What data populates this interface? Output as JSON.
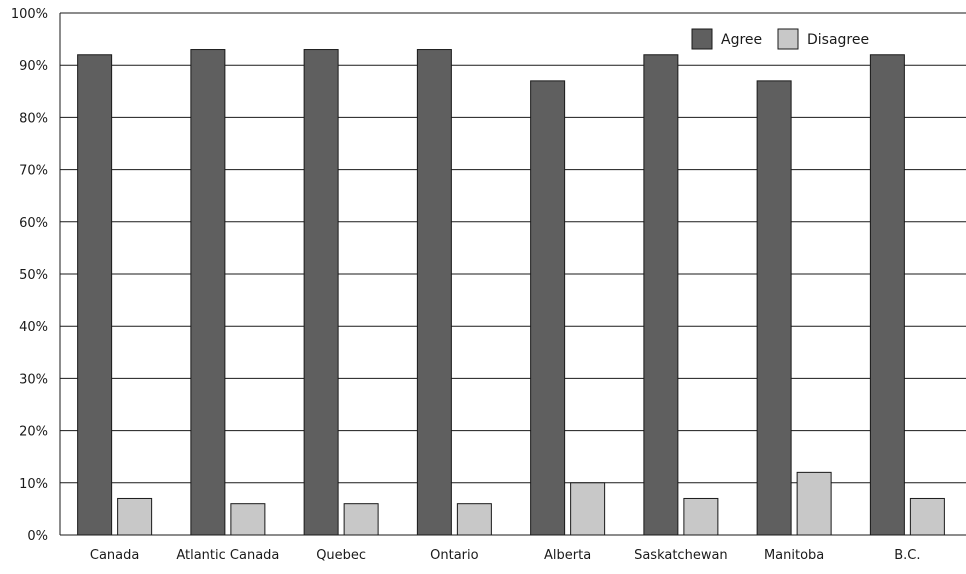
{
  "chart_data": {
    "type": "bar",
    "title": "",
    "xlabel": "",
    "ylabel": "",
    "ylim": [
      0,
      100
    ],
    "y_ticks": [
      "0%",
      "10%",
      "20%",
      "30%",
      "40%",
      "50%",
      "60%",
      "70%",
      "80%",
      "90%",
      "100%"
    ],
    "y_tick_values": [
      0,
      10,
      20,
      30,
      40,
      50,
      60,
      70,
      80,
      90,
      100
    ],
    "grid": true,
    "legend_position": "top-right",
    "categories": [
      "Canada",
      "Atlantic Canada",
      "Quebec",
      "Ontario",
      "Alberta",
      "Saskatchewan",
      "Manitoba",
      "B.C."
    ],
    "series": [
      {
        "name": "Agree",
        "color": "#5f5f5f",
        "values": [
          92,
          93,
          93,
          93,
          87,
          92,
          87,
          92
        ]
      },
      {
        "name": "Disagree",
        "color": "#c8c8c8",
        "values": [
          7,
          6,
          6,
          6,
          10,
          7,
          12,
          7
        ]
      }
    ]
  }
}
